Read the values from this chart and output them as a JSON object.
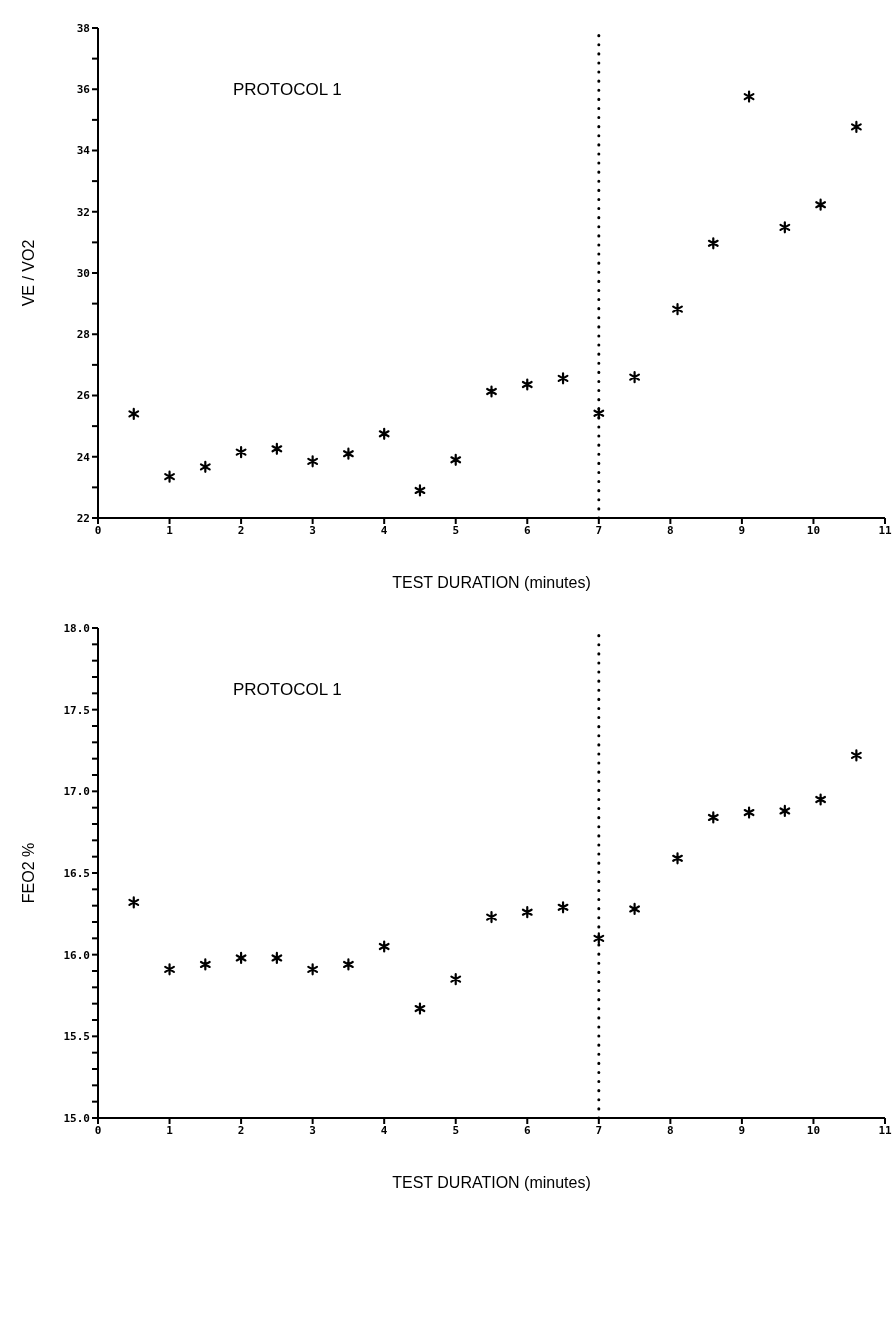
{
  "chart_data": [
    {
      "type": "scatter",
      "xlabel": "TEST DURATION (minutes)",
      "ylabel": "VE / VO2",
      "annotations": [
        "PROTOCOL 1"
      ],
      "x": [
        0.5,
        1,
        1.5,
        2,
        2.5,
        3,
        3.5,
        4,
        4.5,
        5,
        5.5,
        6,
        6.5,
        7,
        7.5,
        8.1,
        8.6,
        9.1,
        9.6,
        10.1,
        10.6
      ],
      "series": [
        {
          "color": "#000000",
          "values": [
            25.4,
            23.35,
            23.67,
            24.15,
            24.26,
            23.85,
            24.1,
            24.75,
            22.9,
            23.9,
            26.13,
            26.36,
            26.56,
            25.42,
            26.6,
            28.82,
            30.97,
            35.76,
            31.49,
            32.23,
            34.77
          ]
        }
      ],
      "xlim": [
        0,
        11
      ],
      "xticks": [
        0,
        1,
        2,
        3,
        4,
        5,
        6,
        7,
        8,
        9,
        10,
        11
      ],
      "ylim": [
        22,
        38
      ],
      "yticks": [
        22,
        {
          "value": 23,
          "label": null
        },
        24,
        {
          "value": 25,
          "label": null
        },
        26,
        {
          "value": 27,
          "label": null
        },
        28,
        {
          "value": 29,
          "label": null
        },
        30,
        {
          "value": 31,
          "label": null
        },
        32,
        {
          "value": 33,
          "label": null
        },
        34,
        {
          "value": 35,
          "label": null
        },
        36,
        {
          "value": 37,
          "label": null
        },
        38
      ],
      "ref_lines": [
        {
          "axis": "x",
          "value": 7,
          "line_style": "dotted",
          "color": "#000000"
        }
      ],
      "marker": "cross",
      "grid": false,
      "legend": false
    },
    {
      "type": "scatter",
      "xlabel": "TEST DURATION (minutes)",
      "ylabel": "FEO2 %",
      "annotations": [
        "PROTOCOL 1"
      ],
      "x": [
        0.5,
        1,
        1.5,
        2,
        2.5,
        3,
        3.5,
        4,
        4.5,
        5,
        5.5,
        6,
        6.5,
        7,
        7.5,
        8.1,
        8.6,
        9.1,
        9.6,
        10.1,
        10.6
      ],
      "series": [
        {
          "color": "#000000",
          "values": [
            16.32,
            15.91,
            15.94,
            15.98,
            15.98,
            15.91,
            15.94,
            16.05,
            15.67,
            15.85,
            16.23,
            16.26,
            16.29,
            16.1,
            16.28,
            16.59,
            16.84,
            16.87,
            16.88,
            16.95,
            17.22
          ]
        }
      ],
      "xlim": [
        0,
        11
      ],
      "xticks": [
        0,
        1,
        2,
        3,
        4,
        5,
        6,
        7,
        8,
        9,
        10,
        11
      ],
      "ylim": [
        15,
        18
      ],
      "yticks": [
        {
          "value": 15,
          "label": "15.0"
        },
        {
          "value": 15.1,
          "label": null
        },
        {
          "value": 15.2,
          "label": null
        },
        {
          "value": 15.3,
          "label": null
        },
        {
          "value": 15.4,
          "label": null
        },
        {
          "value": 15.5,
          "label": "15.5"
        },
        {
          "value": 15.6,
          "label": null
        },
        {
          "value": 15.7,
          "label": null
        },
        {
          "value": 15.8,
          "label": null
        },
        {
          "value": 15.9,
          "label": null
        },
        {
          "value": 16,
          "label": "16.0"
        },
        {
          "value": 16.1,
          "label": null
        },
        {
          "value": 16.2,
          "label": null
        },
        {
          "value": 16.3,
          "label": null
        },
        {
          "value": 16.4,
          "label": null
        },
        {
          "value": 16.5,
          "label": "16.5"
        },
        {
          "value": 16.6,
          "label": null
        },
        {
          "value": 16.7,
          "label": null
        },
        {
          "value": 16.8,
          "label": null
        },
        {
          "value": 16.9,
          "label": null
        },
        {
          "value": 17,
          "label": "17.0"
        },
        {
          "value": 17.1,
          "label": null
        },
        {
          "value": 17.2,
          "label": null
        },
        {
          "value": 17.3,
          "label": null
        },
        {
          "value": 17.4,
          "label": null
        },
        {
          "value": 17.5,
          "label": "17.5"
        },
        {
          "value": 17.6,
          "label": null
        },
        {
          "value": 17.7,
          "label": null
        },
        {
          "value": 17.8,
          "label": null
        },
        {
          "value": 17.9,
          "label": null
        },
        {
          "value": 18,
          "label": "18.0"
        }
      ],
      "ref_lines": [
        {
          "axis": "x",
          "value": 7,
          "line_style": "dotted",
          "color": "#000000"
        }
      ],
      "marker": "cross",
      "grid": false,
      "legend": false
    }
  ]
}
